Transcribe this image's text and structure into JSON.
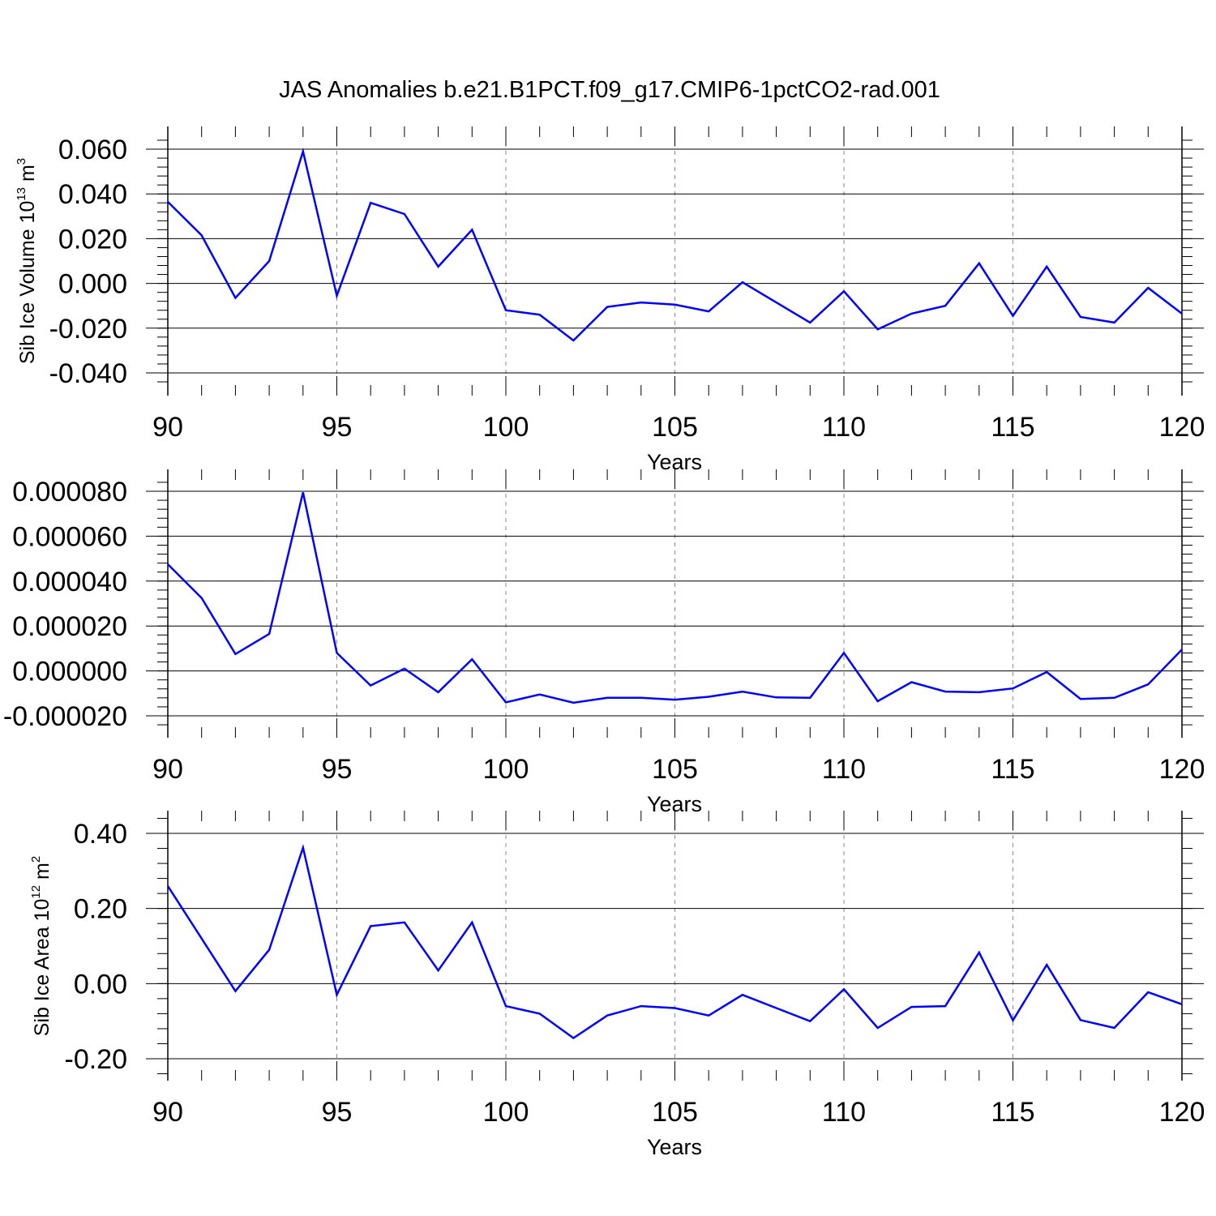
{
  "figure": {
    "title": "JAS Anomalies b.e21.B1PCT.f09_g17.CMIP6-1pctCO2-rad.001"
  },
  "colors": {
    "series": "#0000ff",
    "grid": "#888888",
    "axes": "#000000"
  },
  "chart_data": [
    {
      "type": "line",
      "ylabel_text": "Sib Ice Volume 10",
      "ylabel_exp": "13",
      "ylabel_unit": " m",
      "ylabel_unit_exp": "3",
      "xlabel": "Years",
      "xlim": [
        90,
        120
      ],
      "ylim": [
        -0.04,
        0.06
      ],
      "yticks": [
        0.06,
        0.04,
        0.02,
        0.0,
        -0.02,
        -0.04
      ],
      "ytick_labels": [
        "0.060",
        "0.040",
        "0.020",
        "0.000",
        "-0.020",
        "-0.040"
      ],
      "xticks": [
        90,
        95,
        100,
        105,
        110,
        115,
        120
      ],
      "xtick_labels": [
        "90",
        "95",
        "100",
        "105",
        "110",
        "115",
        "120"
      ],
      "grid": "vertical dashed at major x ticks",
      "x": [
        90,
        91,
        92,
        93,
        94,
        95,
        96,
        97,
        98,
        99,
        100,
        101,
        102,
        103,
        104,
        105,
        106,
        107,
        108,
        109,
        110,
        111,
        112,
        113,
        114,
        115,
        116,
        117,
        118,
        119,
        120
      ],
      "values": [
        0.0365,
        0.0215,
        -0.0065,
        0.01,
        0.059,
        -0.0055,
        0.036,
        0.031,
        0.0075,
        0.024,
        -0.012,
        -0.014,
        -0.0255,
        -0.0105,
        -0.0085,
        -0.0095,
        -0.0125,
        0.0005,
        -0.0085,
        -0.0175,
        -0.0035,
        -0.0205,
        -0.0135,
        -0.01,
        0.009,
        -0.0145,
        0.0075,
        -0.015,
        -0.0175,
        -0.002,
        -0.0135
      ]
    },
    {
      "type": "line",
      "ylabel_text": "",
      "ylabel_exp": "",
      "ylabel_unit": "",
      "ylabel_unit_exp": "",
      "xlabel": "Years",
      "xlim": [
        90,
        120
      ],
      "ylim": [
        -2e-05,
        8e-05
      ],
      "yticks": [
        8e-05,
        6e-05,
        4e-05,
        2e-05,
        0.0,
        -2e-05
      ],
      "ytick_labels": [
        "0.000080",
        "0.000060",
        "0.000040",
        "0.000020",
        "0.000000",
        "-0.000020"
      ],
      "xticks": [
        90,
        95,
        100,
        105,
        110,
        115,
        120
      ],
      "xtick_labels": [
        "90",
        "95",
        "100",
        "105",
        "110",
        "115",
        "120"
      ],
      "grid": "vertical dashed at major x ticks",
      "x": [
        90,
        91,
        92,
        93,
        94,
        95,
        96,
        97,
        98,
        99,
        100,
        101,
        102,
        103,
        104,
        105,
        106,
        107,
        108,
        109,
        110,
        111,
        112,
        113,
        114,
        115,
        116,
        117,
        118,
        119,
        120
      ],
      "values": [
        4.75e-05,
        3.25e-05,
        7.5e-06,
        1.65e-05,
        7.95e-05,
        8e-06,
        -6.5e-06,
        1e-06,
        -9.5e-06,
        5.2e-06,
        -1.4e-05,
        -1.05e-05,
        -1.42e-05,
        -1.2e-05,
        -1.2e-05,
        -1.28e-05,
        -1.15e-05,
        -9.2e-06,
        -1.18e-05,
        -1.2e-05,
        8e-06,
        -1.35e-05,
        -5e-06,
        -9.2e-06,
        -9.5e-06,
        -7.8e-06,
        -5e-07,
        -1.25e-05,
        -1.2e-05,
        -6e-06,
        9.5e-06
      ]
    },
    {
      "type": "line",
      "ylabel_text": "Sib Ice Area 10",
      "ylabel_exp": "12",
      "ylabel_unit": " m",
      "ylabel_unit_exp": "2",
      "xlabel": "Years",
      "xlim": [
        90,
        120
      ],
      "ylim": [
        -0.2,
        0.4
      ],
      "yticks": [
        0.4,
        0.2,
        0.0,
        -0.2
      ],
      "ytick_labels": [
        "0.40",
        "0.20",
        "0.00",
        "-0.20"
      ],
      "xticks": [
        90,
        95,
        100,
        105,
        110,
        115,
        120
      ],
      "xtick_labels": [
        "90",
        "95",
        "100",
        "105",
        "110",
        "115",
        "120"
      ],
      "grid": "vertical dashed at major x ticks",
      "x": [
        90,
        91,
        92,
        93,
        94,
        95,
        96,
        97,
        98,
        99,
        100,
        101,
        102,
        103,
        104,
        105,
        106,
        107,
        108,
        109,
        110,
        111,
        112,
        113,
        114,
        115,
        116,
        117,
        118,
        119,
        120
      ],
      "values": [
        0.26,
        0.12,
        -0.02,
        0.09,
        0.362,
        -0.03,
        0.153,
        0.163,
        0.035,
        0.163,
        -0.06,
        -0.08,
        -0.145,
        -0.085,
        -0.06,
        -0.065,
        -0.085,
        -0.03,
        -0.065,
        -0.1,
        -0.015,
        -0.118,
        -0.062,
        -0.06,
        0.083,
        -0.098,
        0.05,
        -0.097,
        -0.118,
        -0.023,
        -0.055
      ]
    }
  ]
}
